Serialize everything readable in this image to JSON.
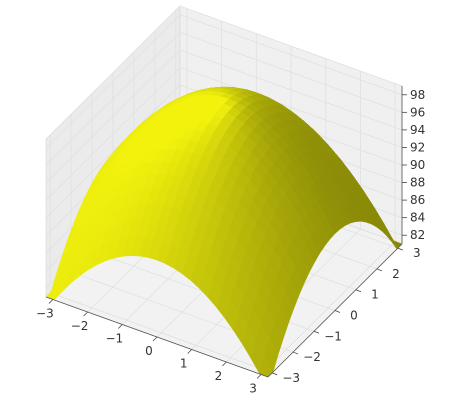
{
  "chart_data": {
    "type": "surface3d",
    "function": "z = 100 - x^2 - y^2",
    "x_range": [
      -3.2,
      3.2
    ],
    "y_range": [
      -3.2,
      3.2
    ],
    "xlim": [
      -3.2,
      3.2
    ],
    "ylim": [
      -3.2,
      3.2
    ],
    "zlim": [
      81.0,
      99.0
    ],
    "x_ticks": [
      -3,
      -2,
      -1,
      0,
      1,
      2,
      3
    ],
    "y_ticks": [
      -3,
      -2,
      -1,
      0,
      1,
      2,
      3
    ],
    "z_ticks": [
      82,
      84,
      86,
      88,
      90,
      92,
      94,
      96,
      98
    ],
    "x_tick_labels": [
      "−3",
      "−2",
      "−1",
      "0",
      "1",
      "2",
      "3"
    ],
    "y_tick_labels": [
      "−3",
      "−2",
      "−1",
      "0",
      "1",
      "2",
      "3"
    ],
    "z_tick_labels": [
      "82",
      "84",
      "86",
      "88",
      "90",
      "92",
      "94",
      "96",
      "98"
    ],
    "surface_color": "#f2f20d",
    "pane_color": "#f2f2f2",
    "grid_color": "#e0e0e0",
    "grid": true
  }
}
